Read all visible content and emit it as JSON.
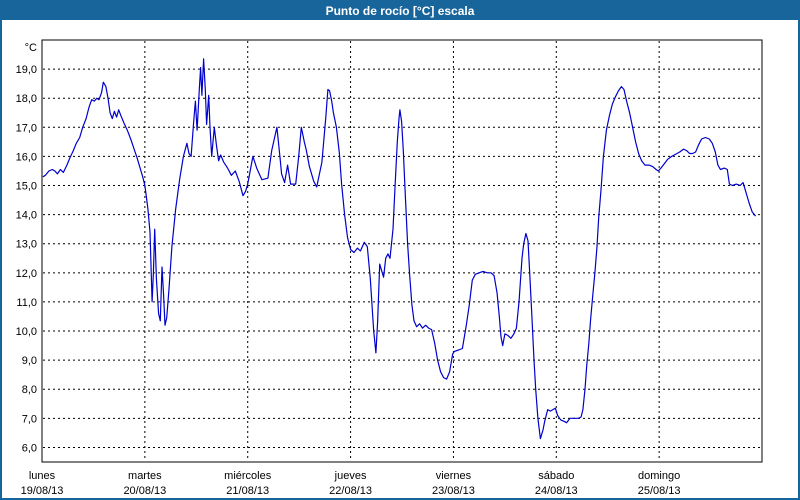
{
  "window": {
    "title": "Punto de rocío [°C] escala"
  },
  "colors": {
    "titlebar_bg": "#18659c",
    "titlebar_text": "#ffffff",
    "window_border": "#18659c",
    "plot_frame": "#000000",
    "grid": "#000000",
    "line": "#0000cd",
    "plot_bg": "#ffffff"
  },
  "chart_data": {
    "type": "line",
    "title": "Punto de rocío [°C] escala",
    "ylabel": "°C",
    "xlabel": "",
    "grid": true,
    "legend": "none",
    "ylim": [
      5.5,
      20.0
    ],
    "yticks": [
      6,
      7,
      8,
      9,
      10,
      11,
      12,
      13,
      14,
      15,
      16,
      17,
      18,
      19
    ],
    "ytick_labels": [
      "6,0",
      "7,0",
      "8,0",
      "9,0",
      "10,0",
      "11,0",
      "12,0",
      "13,0",
      "14,0",
      "15,0",
      "16,0",
      "17,0",
      "18,0",
      "19,0"
    ],
    "x_hours_total": 168,
    "day_labels": [
      {
        "name": "lunes",
        "date": "19/08/13"
      },
      {
        "name": "martes",
        "date": "20/08/13"
      },
      {
        "name": "miércoles",
        "date": "21/08/13"
      },
      {
        "name": "jueves",
        "date": "22/08/13"
      },
      {
        "name": "viernes",
        "date": "23/08/13"
      },
      {
        "name": "sábado",
        "date": "24/08/13"
      },
      {
        "name": "domingo",
        "date": "25/08/13"
      }
    ],
    "series": [
      {
        "name": "Punto de rocío",
        "color": "#0000cd",
        "points": [
          [
            0.2,
            15.3
          ],
          [
            0.8,
            15.35
          ],
          [
            1.6,
            15.5
          ],
          [
            2.4,
            15.55
          ],
          [
            3,
            15.5
          ],
          [
            3.6,
            15.4
          ],
          [
            4.3,
            15.55
          ],
          [
            5,
            15.45
          ],
          [
            5.8,
            15.7
          ],
          [
            6.5,
            15.95
          ],
          [
            7.3,
            16.2
          ],
          [
            8,
            16.45
          ],
          [
            8.8,
            16.65
          ],
          [
            9.5,
            17.0
          ],
          [
            10.3,
            17.3
          ],
          [
            11,
            17.7
          ],
          [
            11.6,
            17.95
          ],
          [
            12.2,
            17.9
          ],
          [
            12.8,
            18.0
          ],
          [
            13.3,
            17.95
          ],
          [
            13.9,
            18.2
          ],
          [
            14.3,
            18.55
          ],
          [
            14.9,
            18.4
          ],
          [
            15.4,
            18.0
          ],
          [
            15.9,
            17.5
          ],
          [
            16.4,
            17.3
          ],
          [
            16.9,
            17.55
          ],
          [
            17.4,
            17.35
          ],
          [
            17.9,
            17.6
          ],
          [
            18.4,
            17.4
          ],
          [
            19.1,
            17.15
          ],
          [
            19.9,
            16.9
          ],
          [
            20.7,
            16.6
          ],
          [
            21.5,
            16.25
          ],
          [
            22.2,
            15.95
          ],
          [
            22.9,
            15.6
          ],
          [
            23.5,
            15.3
          ],
          [
            24,
            15.0
          ],
          [
            24.7,
            14.2
          ],
          [
            25.2,
            13.4
          ],
          [
            25.7,
            11.0
          ],
          [
            26,
            12.0
          ],
          [
            26.3,
            13.5
          ],
          [
            26.7,
            11.8
          ],
          [
            27.2,
            10.6
          ],
          [
            27.6,
            10.35
          ],
          [
            28,
            12.2
          ],
          [
            28.35,
            11.3
          ],
          [
            28.7,
            10.2
          ],
          [
            29.1,
            10.45
          ],
          [
            29.6,
            11.4
          ],
          [
            30.3,
            12.9
          ],
          [
            31.2,
            14.2
          ],
          [
            32.1,
            15.2
          ],
          [
            33,
            16.0
          ],
          [
            33.8,
            16.45
          ],
          [
            34.3,
            16.1
          ],
          [
            34.8,
            16.0
          ],
          [
            35.4,
            17.2
          ],
          [
            35.8,
            17.9
          ],
          [
            36.2,
            16.9
          ],
          [
            36.7,
            18.3
          ],
          [
            37,
            19.05
          ],
          [
            37.3,
            18.1
          ],
          [
            37.7,
            19.35
          ],
          [
            38.1,
            18.3
          ],
          [
            38.4,
            17.1
          ],
          [
            38.9,
            18.1
          ],
          [
            39.2,
            17.0
          ],
          [
            39.6,
            16.0
          ],
          [
            40.2,
            17.0
          ],
          [
            40.7,
            16.4
          ],
          [
            41.2,
            15.85
          ],
          [
            41.7,
            16.05
          ],
          [
            42.4,
            15.8
          ],
          [
            43.3,
            15.6
          ],
          [
            44.2,
            15.35
          ],
          [
            45.1,
            15.5
          ],
          [
            46,
            15.15
          ],
          [
            46.9,
            14.65
          ],
          [
            47.5,
            14.8
          ],
          [
            48,
            15.05
          ],
          [
            49.2,
            16.0
          ],
          [
            50.1,
            15.6
          ],
          [
            51.3,
            15.2
          ],
          [
            52.7,
            15.25
          ],
          [
            53.6,
            16.2
          ],
          [
            54.8,
            17.0
          ],
          [
            55.5,
            16.0
          ],
          [
            55.9,
            15.4
          ],
          [
            56.6,
            15.1
          ],
          [
            57.3,
            15.7
          ],
          [
            58,
            15.05
          ],
          [
            59.2,
            15.05
          ],
          [
            59.9,
            16.0
          ],
          [
            60.5,
            17.0
          ],
          [
            61.2,
            16.5
          ],
          [
            61.7,
            16.2
          ],
          [
            62.4,
            15.65
          ],
          [
            63.4,
            15.15
          ],
          [
            64.1,
            14.95
          ],
          [
            65.3,
            15.8
          ],
          [
            66.2,
            17.3
          ],
          [
            66.7,
            18.3
          ],
          [
            67.1,
            18.25
          ],
          [
            67.6,
            17.9
          ],
          [
            68,
            17.5
          ],
          [
            68.7,
            17.0
          ],
          [
            69.4,
            16.1
          ],
          [
            69.9,
            15.05
          ],
          [
            70.6,
            14.0
          ],
          [
            71.3,
            13.2
          ],
          [
            72,
            12.8
          ],
          [
            72.8,
            12.7
          ],
          [
            73.6,
            12.85
          ],
          [
            74.3,
            12.75
          ],
          [
            75.2,
            13.05
          ],
          [
            75.9,
            12.9
          ],
          [
            76.6,
            11.8
          ],
          [
            77.4,
            10.0
          ],
          [
            77.9,
            9.25
          ],
          [
            78.3,
            10.3
          ],
          [
            78.8,
            12.3
          ],
          [
            79.2,
            12.1
          ],
          [
            79.7,
            11.85
          ],
          [
            80.2,
            12.5
          ],
          [
            80.7,
            12.65
          ],
          [
            81.2,
            12.5
          ],
          [
            81.9,
            13.5
          ],
          [
            82.4,
            15.0
          ],
          [
            82.9,
            16.5
          ],
          [
            83.3,
            17.3
          ],
          [
            83.5,
            17.6
          ],
          [
            83.9,
            17.2
          ],
          [
            84.3,
            16.2
          ],
          [
            84.8,
            14.6
          ],
          [
            85.3,
            13.0
          ],
          [
            85.8,
            11.9
          ],
          [
            86.3,
            10.9
          ],
          [
            86.8,
            10.35
          ],
          [
            87.4,
            10.15
          ],
          [
            88.1,
            10.25
          ],
          [
            88.8,
            10.1
          ],
          [
            89.5,
            10.2
          ],
          [
            90.2,
            10.1
          ],
          [
            90.9,
            10.05
          ],
          [
            91.6,
            9.6
          ],
          [
            92.3,
            9.0
          ],
          [
            93,
            8.6
          ],
          [
            93.7,
            8.4
          ],
          [
            94.4,
            8.35
          ],
          [
            95.1,
            8.6
          ],
          [
            95.8,
            9.2
          ],
          [
            96.2,
            9.3
          ],
          [
            97.2,
            9.35
          ],
          [
            98.1,
            9.4
          ],
          [
            99,
            10.2
          ],
          [
            99.7,
            10.9
          ],
          [
            100.4,
            11.75
          ],
          [
            101.1,
            11.95
          ],
          [
            102,
            12.0
          ],
          [
            102.9,
            12.05
          ],
          [
            103.9,
            12.0
          ],
          [
            104.8,
            12.0
          ],
          [
            105.5,
            11.9
          ],
          [
            106.2,
            11.3
          ],
          [
            106.7,
            10.5
          ],
          [
            107.1,
            9.8
          ],
          [
            107.5,
            9.5
          ],
          [
            108,
            9.9
          ],
          [
            108.7,
            9.85
          ],
          [
            109.4,
            9.75
          ],
          [
            110.1,
            9.9
          ],
          [
            110.7,
            10.1
          ],
          [
            111.3,
            11.0
          ],
          [
            112,
            12.5
          ],
          [
            112.4,
            13.0
          ],
          [
            112.9,
            13.35
          ],
          [
            113.4,
            13.1
          ],
          [
            113.8,
            12.0
          ],
          [
            114.3,
            10.5
          ],
          [
            114.8,
            9.0
          ],
          [
            115.2,
            8.0
          ],
          [
            115.7,
            7.0
          ],
          [
            116.3,
            6.3
          ],
          [
            116.9,
            6.6
          ],
          [
            117.3,
            6.9
          ],
          [
            118,
            7.3
          ],
          [
            118.6,
            7.25
          ],
          [
            119.2,
            7.3
          ],
          [
            119.8,
            7.35
          ],
          [
            120.3,
            7.1
          ],
          [
            121,
            6.95
          ],
          [
            121.8,
            6.9
          ],
          [
            122.4,
            6.85
          ],
          [
            123.2,
            7.0
          ],
          [
            124.2,
            7.0
          ],
          [
            125.2,
            7.0
          ],
          [
            125.8,
            7.05
          ],
          [
            126.2,
            7.3
          ],
          [
            126.7,
            8.0
          ],
          [
            127.1,
            8.8
          ],
          [
            127.6,
            9.6
          ],
          [
            128,
            10.4
          ],
          [
            128.5,
            11.2
          ],
          [
            129,
            12.0
          ],
          [
            129.5,
            12.9
          ],
          [
            129.9,
            13.9
          ],
          [
            130.4,
            14.8
          ],
          [
            131,
            16.0
          ],
          [
            131.7,
            16.9
          ],
          [
            132.4,
            17.4
          ],
          [
            133.1,
            17.8
          ],
          [
            133.8,
            18.05
          ],
          [
            134.5,
            18.25
          ],
          [
            135.2,
            18.4
          ],
          [
            135.8,
            18.3
          ],
          [
            136.4,
            17.9
          ],
          [
            137.1,
            17.5
          ],
          [
            137.8,
            17.0
          ],
          [
            138.5,
            16.5
          ],
          [
            139.2,
            16.1
          ],
          [
            139.9,
            15.85
          ],
          [
            140.7,
            15.7
          ],
          [
            141.6,
            15.7
          ],
          [
            142.5,
            15.65
          ],
          [
            143.3,
            15.55
          ],
          [
            143.8,
            15.5
          ],
          [
            144.4,
            15.6
          ],
          [
            145.2,
            15.75
          ],
          [
            146,
            15.9
          ],
          [
            146.9,
            16.0
          ],
          [
            147.9,
            16.08
          ],
          [
            148.8,
            16.15
          ],
          [
            149.7,
            16.25
          ],
          [
            150.4,
            16.2
          ],
          [
            151.1,
            16.1
          ],
          [
            151.8,
            16.1
          ],
          [
            152.5,
            16.15
          ],
          [
            153.2,
            16.4
          ],
          [
            153.9,
            16.6
          ],
          [
            154.8,
            16.65
          ],
          [
            155.7,
            16.6
          ],
          [
            156.4,
            16.45
          ],
          [
            157.1,
            16.15
          ],
          [
            157.7,
            15.7
          ],
          [
            158.3,
            15.55
          ],
          [
            159.2,
            15.6
          ],
          [
            159.9,
            15.55
          ],
          [
            160.4,
            15.05
          ],
          [
            161.1,
            15.0
          ],
          [
            162,
            15.05
          ],
          [
            162.9,
            15.0
          ],
          [
            163.6,
            15.1
          ],
          [
            164.3,
            14.75
          ],
          [
            165,
            14.4
          ],
          [
            165.7,
            14.1
          ],
          [
            166.5,
            13.95
          ]
        ]
      }
    ]
  }
}
